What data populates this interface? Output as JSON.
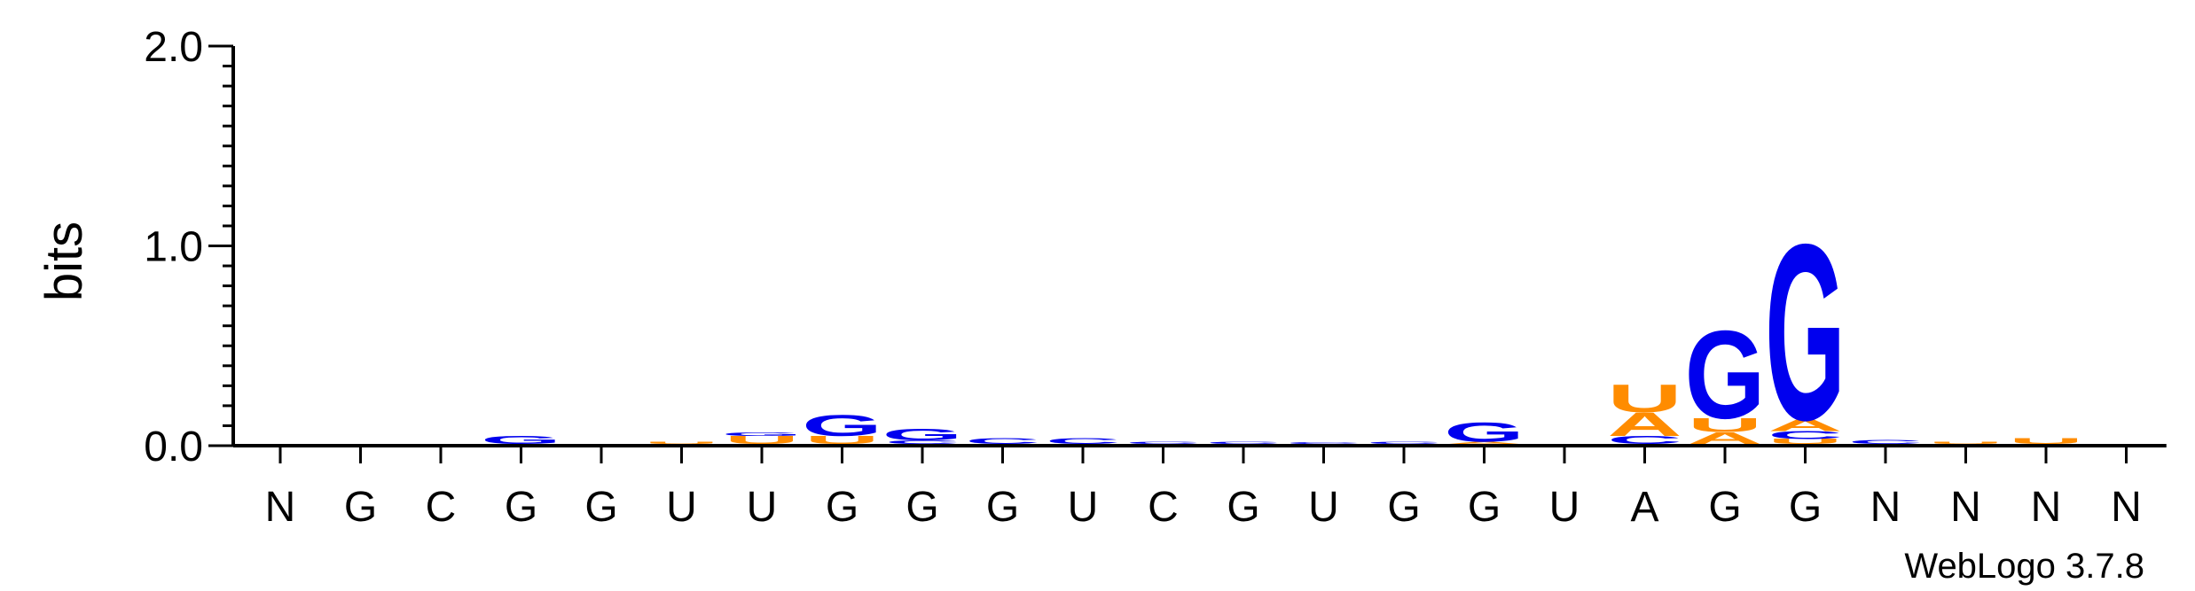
{
  "chart_data": {
    "type": "sequence-logo",
    "ylabel": "bits",
    "ylim": [
      0,
      2.0
    ],
    "y_ticks": [
      "0.0",
      "1.0",
      "2.0"
    ],
    "y_tick_values": [
      0,
      1.0,
      2.0
    ],
    "minor_step": 0.1,
    "positions": [
      "N",
      "G",
      "C",
      "G",
      "G",
      "U",
      "U",
      "G",
      "G",
      "G",
      "U",
      "C",
      "G",
      "U",
      "G",
      "G",
      "U",
      "A",
      "G",
      "G",
      "N",
      "N",
      "N",
      "N"
    ],
    "colors": {
      "G": "#0000ee",
      "C": "#0000ee",
      "A": "#ff8c00",
      "U": "#ff8c00"
    },
    "stacks": [
      [],
      [],
      [],
      [
        {
          "base": "G",
          "height": 0.04
        }
      ],
      [],
      [
        {
          "base": "U",
          "height": 0.012
        }
      ],
      [
        {
          "base": "U",
          "height": 0.04
        },
        {
          "base": "G",
          "height": 0.018
        }
      ],
      [
        {
          "base": "U",
          "height": 0.04
        },
        {
          "base": "G",
          "height": 0.11
        }
      ],
      [
        {
          "base": "C",
          "height": 0.018
        },
        {
          "base": "G",
          "height": 0.06
        }
      ],
      [
        {
          "base": "C",
          "height": 0.03
        }
      ],
      [
        {
          "base": "C",
          "height": 0.03
        }
      ],
      [
        {
          "base": "C",
          "height": 0.01
        }
      ],
      [
        {
          "base": "C",
          "height": 0.01
        }
      ],
      [
        {
          "base": "C",
          "height": 0.008
        }
      ],
      [
        {
          "base": "C",
          "height": 0.01
        }
      ],
      [
        {
          "base": "A",
          "height": 0.012
        },
        {
          "base": "G",
          "height": 0.1
        }
      ],
      [],
      [
        {
          "base": "C",
          "height": 0.04
        },
        {
          "base": "A",
          "height": 0.12
        },
        {
          "base": "U",
          "height": 0.14
        }
      ],
      [
        {
          "base": "A",
          "height": 0.06
        },
        {
          "base": "U",
          "height": 0.07
        },
        {
          "base": "G",
          "height": 0.45
        }
      ],
      [
        {
          "base": "U",
          "height": 0.025
        },
        {
          "base": "C",
          "height": 0.04
        },
        {
          "base": "A",
          "height": 0.06
        },
        {
          "base": "G",
          "height": 0.9
        }
      ],
      [
        {
          "base": "C",
          "height": 0.02
        }
      ],
      [
        {
          "base": "U",
          "height": 0.01
        }
      ],
      [
        {
          "base": "U",
          "height": 0.03
        }
      ],
      []
    ]
  },
  "credit": "WebLogo 3.7.8"
}
